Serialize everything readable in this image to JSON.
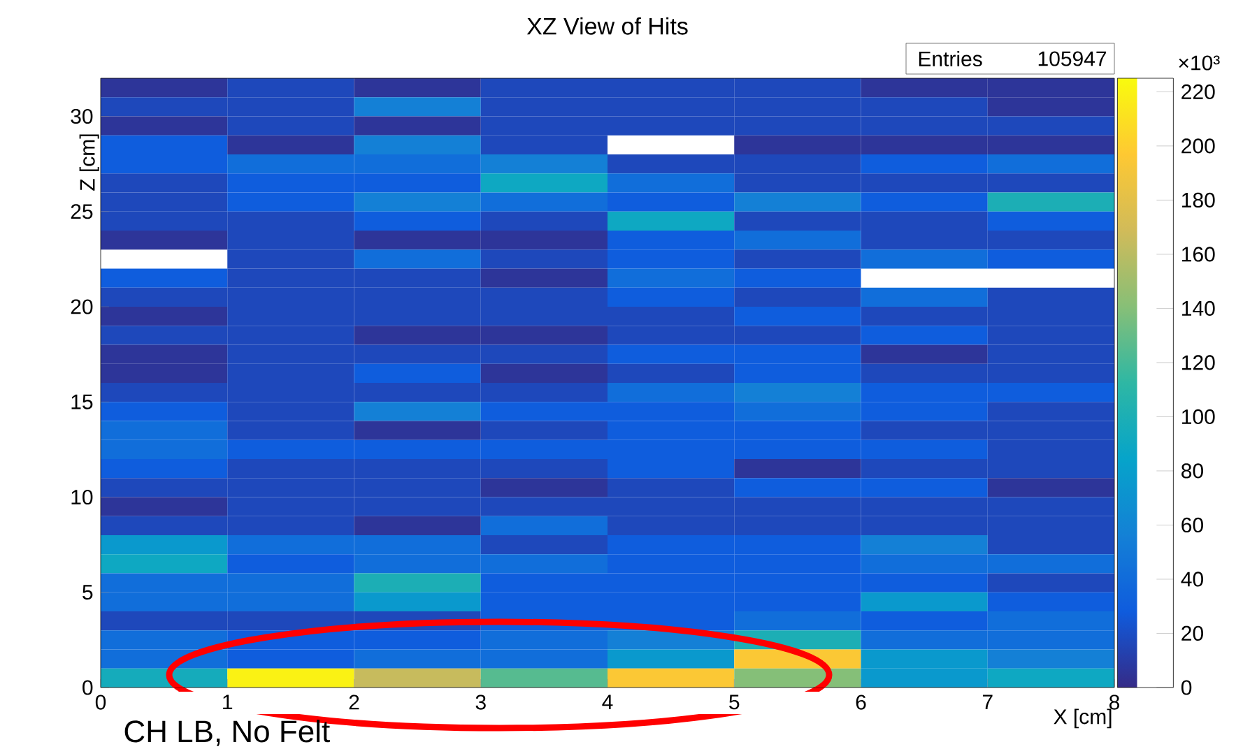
{
  "chart_data": {
    "type": "heatmap",
    "title": "XZ View of Hits",
    "xlabel": "X [cm]",
    "ylabel": "Z [cm]",
    "clabel": "×10³",
    "annotations": [
      "Entries",
      "105947",
      "CH LB, No Felt"
    ],
    "xlim": [
      0,
      8
    ],
    "ylim": [
      0,
      32
    ],
    "xticks": [
      0,
      1,
      2,
      3,
      4,
      5,
      6,
      7,
      8
    ],
    "yticks": [
      0,
      5,
      10,
      15,
      20,
      25,
      30
    ],
    "clim": [
      0,
      225
    ],
    "cticks": [
      0,
      20,
      40,
      60,
      80,
      100,
      120,
      140,
      160,
      180,
      200,
      220
    ],
    "cells": [
      [
        6,
        17,
        6,
        17,
        17,
        17,
        6,
        6
      ],
      [
        17,
        17,
        56,
        17,
        17,
        17,
        17,
        6
      ],
      [
        6,
        17,
        6,
        17,
        17,
        17,
        17,
        17
      ],
      [
        29,
        6,
        56,
        17,
        null,
        6,
        6,
        6
      ],
      [
        29,
        42,
        42,
        56,
        17,
        17,
        29,
        42
      ],
      [
        17,
        29,
        29,
        90,
        42,
        17,
        17,
        17
      ],
      [
        17,
        29,
        56,
        42,
        29,
        56,
        29,
        100
      ],
      [
        17,
        17,
        29,
        17,
        90,
        17,
        17,
        29
      ],
      [
        6,
        17,
        6,
        6,
        29,
        42,
        17,
        17
      ],
      [
        null,
        17,
        42,
        17,
        29,
        17,
        42,
        29
      ],
      [
        29,
        17,
        17,
        6,
        42,
        29,
        null,
        null
      ],
      [
        17,
        17,
        17,
        17,
        29,
        17,
        42,
        17
      ],
      [
        6,
        17,
        17,
        17,
        17,
        29,
        17,
        17
      ],
      [
        17,
        17,
        6,
        6,
        17,
        17,
        29,
        17
      ],
      [
        6,
        17,
        17,
        17,
        29,
        29,
        6,
        17
      ],
      [
        6,
        17,
        29,
        6,
        17,
        29,
        17,
        17
      ],
      [
        17,
        17,
        17,
        17,
        42,
        56,
        29,
        29
      ],
      [
        29,
        17,
        56,
        29,
        29,
        42,
        29,
        17
      ],
      [
        42,
        17,
        6,
        17,
        29,
        29,
        17,
        17
      ],
      [
        42,
        29,
        29,
        29,
        29,
        29,
        29,
        17
      ],
      [
        29,
        17,
        17,
        17,
        29,
        6,
        17,
        17
      ],
      [
        17,
        17,
        17,
        6,
        17,
        29,
        29,
        6
      ],
      [
        6,
        17,
        17,
        17,
        17,
        17,
        17,
        17
      ],
      [
        17,
        17,
        6,
        42,
        17,
        17,
        17,
        17
      ],
      [
        76,
        42,
        42,
        17,
        29,
        29,
        56,
        17
      ],
      [
        90,
        29,
        42,
        42,
        29,
        29,
        42,
        42
      ],
      [
        42,
        42,
        100,
        29,
        29,
        29,
        29,
        17
      ],
      [
        42,
        42,
        76,
        29,
        29,
        29,
        76,
        29
      ],
      [
        17,
        17,
        17,
        29,
        29,
        42,
        29,
        42
      ],
      [
        42,
        29,
        29,
        42,
        56,
        100,
        42,
        42
      ],
      [
        42,
        29,
        42,
        42,
        76,
        195,
        76,
        56
      ],
      [
        95,
        220,
        165,
        125,
        195,
        140,
        76,
        90
      ]
    ]
  }
}
